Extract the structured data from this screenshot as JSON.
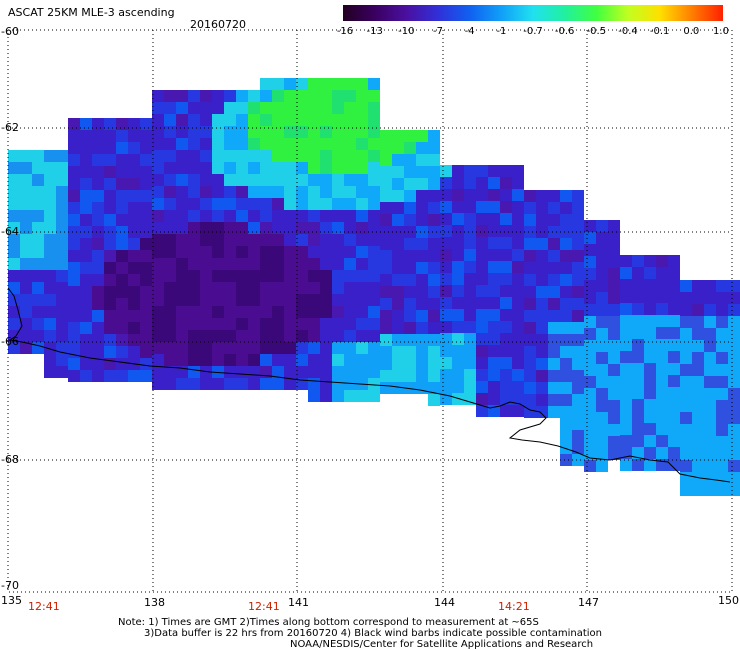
{
  "header": {
    "title": "ASCAT 25KM MLE-3 ascending",
    "date": "20160720"
  },
  "colorbar": {
    "labels": [
      "-16",
      "-13",
      "-10",
      "-7",
      "-4",
      "-1",
      "-0.7",
      "-0.6",
      "-0.5",
      "-0.4",
      "-0.1",
      "0.0",
      "1.0"
    ],
    "colors": [
      "#220022",
      "#3a0060",
      "#4a10a0",
      "#3030d8",
      "#1060f0",
      "#10a0f8",
      "#20e0f0",
      "#20f0a0",
      "#40ff40",
      "#c0ff20",
      "#ffe000",
      "#ff8000",
      "#ff2000"
    ]
  },
  "axes": {
    "lat_labels": [
      "-60",
      "-62",
      "-64",
      "-66",
      "-68",
      "-70"
    ],
    "lon_labels": [
      "135",
      "138",
      "141",
      "144",
      "147",
      "150"
    ],
    "time_labels": [
      "12:41",
      "12:41",
      "14:21"
    ]
  },
  "notes": {
    "line1": "Note: 1) Times are GMT 2)Times along bottom correspond to measurement at ~65S",
    "line2": "3)Data buffer is 22 hrs from 20160720 4) Black wind barbs indicate possible contamination",
    "line3": "NOAA/NESDIS/Center for Satellite Applications and Research"
  }
}
